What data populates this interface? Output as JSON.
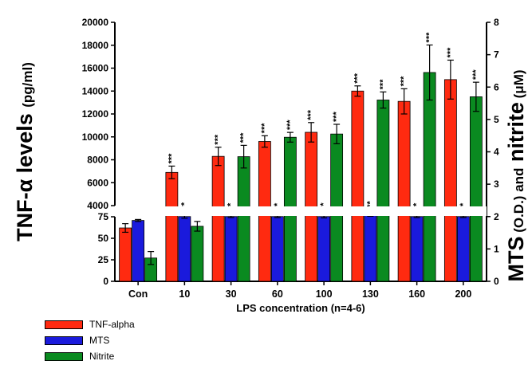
{
  "chart_data": {
    "type": "bar",
    "xlabel": "LPS concentration (n=4-6)",
    "ylabel_left_main": "TNF-α levels",
    "ylabel_left_unit": "(pg/ml)",
    "ylabel_right_parts": [
      "MTS",
      "(O.D.)",
      "and",
      "nitrite",
      "(μM)"
    ],
    "categories": [
      "Con",
      "10",
      "30",
      "60",
      "100",
      "130",
      "160",
      "200"
    ],
    "y_left_upper_range": [
      4000,
      20000
    ],
    "y_left_upper_ticks": [
      "4000",
      "6000",
      "8000",
      "10000",
      "12000",
      "14000",
      "16000",
      "18000",
      "20000"
    ],
    "y_left_lower_range": [
      0,
      75
    ],
    "y_left_lower_ticks": [
      "0",
      "25",
      "50",
      "75"
    ],
    "y_right_range": [
      0,
      8
    ],
    "y_right_ticks": [
      "0",
      "1",
      "2",
      "3",
      "4",
      "5",
      "6",
      "7",
      "8"
    ],
    "series": [
      {
        "name": "TNF-alpha",
        "color": "#ff2a10",
        "axis": "left",
        "values": [
          62,
          6900,
          8300,
          9600,
          10400,
          14000,
          13100,
          15000
        ],
        "errors": [
          5,
          550,
          800,
          500,
          850,
          450,
          1100,
          1700
        ],
        "stars": [
          "",
          "***",
          "***",
          "***",
          "***",
          "***",
          "***",
          "***"
        ]
      },
      {
        "name": "MTS",
        "color": "#1a1adc",
        "axis": "right",
        "values": [
          1.88,
          2.0,
          2.0,
          2.0,
          2.0,
          2.05,
          2.0,
          2.0
        ],
        "errors": [
          0.03,
          0.05,
          0.03,
          0.03,
          0.04,
          0.04,
          0.03,
          0.03
        ],
        "stars": [
          "",
          "***",
          "***",
          "***",
          "***",
          "***",
          "***",
          "***"
        ]
      },
      {
        "name": "Nitrite",
        "color": "#0a8a20",
        "axis": "right",
        "values": [
          0.72,
          1.7,
          3.85,
          4.45,
          4.55,
          5.6,
          6.45,
          5.7
        ],
        "errors": [
          0.2,
          0.15,
          0.35,
          0.15,
          0.3,
          0.25,
          0.85,
          0.45
        ],
        "stars": [
          "",
          "",
          "***",
          "***",
          "***",
          "***",
          "***",
          "***"
        ]
      }
    ],
    "legend": [
      "TNF-alpha",
      "MTS",
      "Nitrite"
    ],
    "legend_position": "bottom-left",
    "grid": false
  }
}
